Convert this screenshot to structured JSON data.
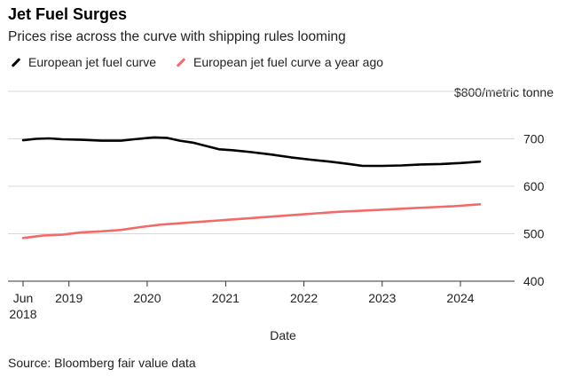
{
  "chart_data": {
    "type": "line",
    "title": "Jet Fuel Surges",
    "subtitle": "Prices rise across the curve with shipping rules looming",
    "unit_label": "$800/metric tonne",
    "xlabel": "Date",
    "source": "Source: Bloomberg fair value data",
    "ylim": [
      400,
      800
    ],
    "yticks": [
      400,
      500,
      600,
      700
    ],
    "xlim": [
      "2018-06-01",
      "2024-07-01"
    ],
    "xticks": [
      {
        "date": "2018-06-01",
        "label": "Jun",
        "label2": "2018"
      },
      {
        "date": "2019-01-01",
        "label": "2019"
      },
      {
        "date": "2020-01-01",
        "label": "2020"
      },
      {
        "date": "2021-01-01",
        "label": "2021"
      },
      {
        "date": "2022-01-01",
        "label": "2022"
      },
      {
        "date": "2023-01-01",
        "label": "2023"
      },
      {
        "date": "2024-01-01",
        "label": "2024"
      }
    ],
    "legend_position": "top-left",
    "grid": true,
    "series": [
      {
        "name": "European jet fuel curve",
        "color": "#000000",
        "points": [
          [
            "2018-06-01",
            697
          ],
          [
            "2018-08-01",
            700
          ],
          [
            "2018-10-01",
            701
          ],
          [
            "2018-12-01",
            699
          ],
          [
            "2019-03-01",
            698
          ],
          [
            "2019-06-01",
            696
          ],
          [
            "2019-09-01",
            696
          ],
          [
            "2019-11-01",
            699
          ],
          [
            "2020-02-01",
            703
          ],
          [
            "2020-04-01",
            702
          ],
          [
            "2020-06-01",
            696
          ],
          [
            "2020-08-01",
            692
          ],
          [
            "2020-10-01",
            685
          ],
          [
            "2020-12-01",
            678
          ],
          [
            "2021-02-01",
            676
          ],
          [
            "2021-05-01",
            672
          ],
          [
            "2021-08-01",
            667
          ],
          [
            "2021-11-01",
            661
          ],
          [
            "2022-02-01",
            656
          ],
          [
            "2022-05-01",
            652
          ],
          [
            "2022-08-01",
            647
          ],
          [
            "2022-10-01",
            643
          ],
          [
            "2023-01-01",
            643
          ],
          [
            "2023-04-01",
            644
          ],
          [
            "2023-07-01",
            646
          ],
          [
            "2023-10-01",
            647
          ],
          [
            "2024-01-01",
            649
          ],
          [
            "2024-04-01",
            652
          ]
        ]
      },
      {
        "name": "European jet fuel curve a year ago",
        "color": "#f26b6b",
        "points": [
          [
            "2018-06-01",
            491
          ],
          [
            "2018-09-01",
            496
          ],
          [
            "2018-12-01",
            498
          ],
          [
            "2019-03-01",
            503
          ],
          [
            "2019-06-01",
            505
          ],
          [
            "2019-09-01",
            508
          ],
          [
            "2019-12-01",
            514
          ],
          [
            "2020-03-01",
            519
          ],
          [
            "2020-06-01",
            522
          ],
          [
            "2020-09-01",
            525
          ],
          [
            "2020-12-01",
            528
          ],
          [
            "2021-03-01",
            531
          ],
          [
            "2021-06-01",
            534
          ],
          [
            "2021-09-01",
            537
          ],
          [
            "2021-12-01",
            540
          ],
          [
            "2022-03-01",
            543
          ],
          [
            "2022-06-01",
            546
          ],
          [
            "2022-09-01",
            548
          ],
          [
            "2022-12-01",
            550
          ],
          [
            "2023-03-01",
            552
          ],
          [
            "2023-06-01",
            554
          ],
          [
            "2023-09-01",
            556
          ],
          [
            "2023-12-01",
            558
          ],
          [
            "2024-04-01",
            562
          ]
        ]
      }
    ]
  }
}
